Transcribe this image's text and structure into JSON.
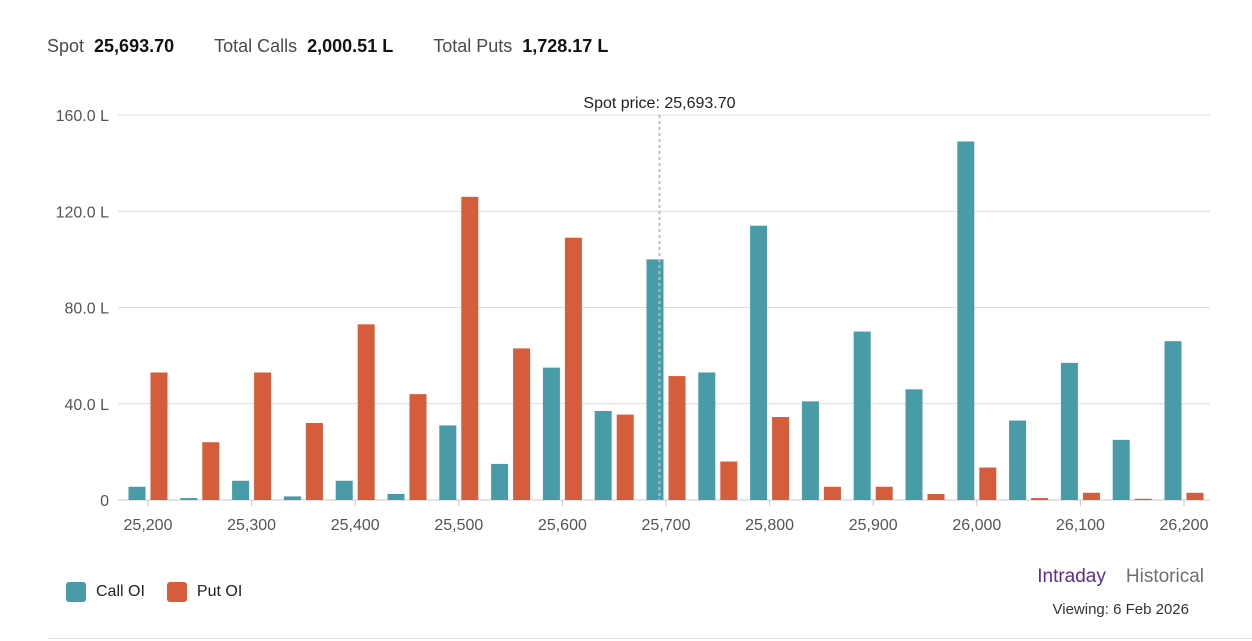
{
  "summary": {
    "spot_label": "Spot",
    "spot_value": "25,693.70",
    "calls_label": "Total Calls",
    "calls_value": "2,000.51 L",
    "puts_label": "Total Puts",
    "puts_value": "1,728.17 L"
  },
  "chart_data": {
    "type": "bar",
    "categories": [
      25200,
      25250,
      25300,
      25350,
      25400,
      25450,
      25500,
      25550,
      25600,
      25650,
      25700,
      25750,
      25800,
      25850,
      25900,
      25950,
      26000,
      26050,
      26100,
      26150,
      26200
    ],
    "series": [
      {
        "name": "Call OI",
        "color": "#4a9ba8",
        "values": [
          5.5,
          0.8,
          8,
          1.5,
          8,
          2.5,
          31,
          15,
          55,
          37,
          100,
          53,
          114,
          41,
          70,
          46,
          149,
          33,
          57,
          25,
          66
        ]
      },
      {
        "name": "Put OI",
        "color": "#d55d3b",
        "values": [
          53,
          24,
          53,
          32,
          73,
          44,
          126,
          63,
          109,
          35.5,
          51.5,
          16,
          34.5,
          5.5,
          5.5,
          2.5,
          13.5,
          0.8,
          3,
          0.5,
          3
        ]
      }
    ],
    "ylim": [
      0,
      160
    ],
    "yticks": [
      0,
      40,
      80,
      120,
      160
    ],
    "ytick_labels": [
      "0",
      "40.0 L",
      "80.0 L",
      "120.0 L",
      "160.0 L"
    ],
    "xticks": [
      25200,
      25300,
      25400,
      25500,
      25600,
      25700,
      25800,
      25900,
      26000,
      26100,
      26200
    ],
    "xtick_labels": [
      "25,200",
      "25,300",
      "25,400",
      "25,500",
      "25,600",
      "25,700",
      "25,800",
      "25,900",
      "26,000",
      "26,100",
      "26,200"
    ],
    "grid": true,
    "legend_position": "bottom-left",
    "spot_marker": {
      "value": 25693.7,
      "label": "Spot price: 25,693.70",
      "color": "#bdbdbd"
    }
  },
  "legend": {
    "call_label": "Call OI",
    "put_label": "Put OI",
    "call_color": "#4a9ba8",
    "put_color": "#d55d3b"
  },
  "toggle": {
    "intraday": "Intraday",
    "historical": "Historical",
    "active_color": "#5b2d8e",
    "inactive_color": "#6f6f6f"
  },
  "viewing": "Viewing: 6 Feb 2026"
}
